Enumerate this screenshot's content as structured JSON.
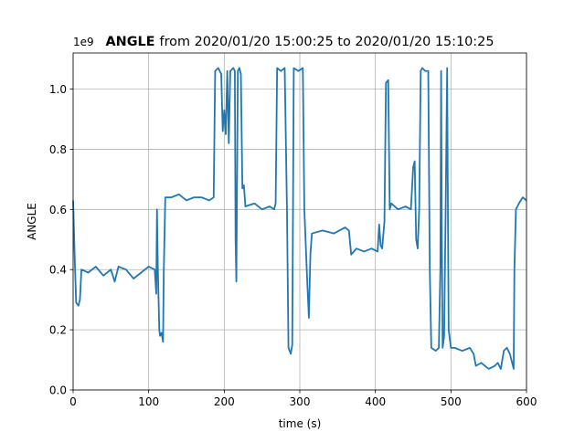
{
  "chart_data": {
    "type": "line",
    "title_variable": "ANGLE",
    "title": "from 2020/01/20 15:00:25 to 2020/01/20 15:10:25",
    "x_label": "time (s)",
    "y_label": "ANGLE",
    "y_offset": "1e9",
    "xlim": [
      0,
      600
    ],
    "ylim": [
      0,
      1.12
    ],
    "xticks": [
      0,
      100,
      200,
      300,
      400,
      500,
      600
    ],
    "yticks": [
      {
        "value": 0,
        "label": "0.0"
      },
      0.2,
      0.4,
      0.6,
      0.8,
      {
        "value": 1.0,
        "label": "1.0"
      }
    ],
    "grid": true,
    "series": [
      {
        "name": "ANGLE",
        "color": "#1f77b4",
        "x": [
          0,
          2,
          4,
          7,
          9,
          11,
          20,
          30,
          40,
          50,
          55,
          60,
          70,
          80,
          90,
          100,
          108,
          110,
          111,
          112,
          114,
          115,
          117,
          119,
          120,
          122,
          130,
          140,
          150,
          160,
          170,
          180,
          186,
          188,
          192,
          196,
          198,
          200,
          202,
          204,
          206,
          208,
          212,
          214,
          215,
          216,
          218,
          220,
          222,
          224,
          226,
          228,
          240,
          250,
          260,
          266,
          268,
          270,
          275,
          280,
          283,
          285,
          288,
          290,
          292,
          298,
          304,
          306,
          310,
          312,
          314,
          316,
          330,
          345,
          360,
          365,
          368,
          375,
          385,
          395,
          403,
          405,
          407,
          409,
          412,
          414,
          417,
          419,
          421,
          430,
          440,
          447,
          450,
          452,
          454,
          456,
          458,
          460,
          462,
          466,
          470,
          472,
          474,
          480,
          484,
          486,
          487,
          488,
          489,
          491,
          493,
          495,
          496,
          497,
          500,
          505,
          515,
          525,
          530,
          533,
          540,
          550,
          558,
          562,
          566,
          570,
          574,
          578,
          583,
          584,
          586,
          590,
          595,
          600
        ],
        "values": [
          0.63,
          0.45,
          0.29,
          0.28,
          0.3,
          0.4,
          0.39,
          0.41,
          0.38,
          0.4,
          0.36,
          0.41,
          0.4,
          0.37,
          0.39,
          0.41,
          0.4,
          0.32,
          0.6,
          0.42,
          0.2,
          0.18,
          0.19,
          0.16,
          0.4,
          0.64,
          0.64,
          0.65,
          0.63,
          0.64,
          0.64,
          0.63,
          0.64,
          1.06,
          1.07,
          1.05,
          0.86,
          0.93,
          0.85,
          1.06,
          0.82,
          1.06,
          1.07,
          1.06,
          0.5,
          0.36,
          1.06,
          1.07,
          1.05,
          0.67,
          0.68,
          0.61,
          0.62,
          0.6,
          0.61,
          0.6,
          0.62,
          1.07,
          1.06,
          1.07,
          0.6,
          0.14,
          0.12,
          0.15,
          1.07,
          1.06,
          1.07,
          0.6,
          0.35,
          0.24,
          0.45,
          0.52,
          0.53,
          0.52,
          0.54,
          0.53,
          0.45,
          0.47,
          0.46,
          0.47,
          0.46,
          0.55,
          0.48,
          0.47,
          0.56,
          1.02,
          1.03,
          0.6,
          0.62,
          0.6,
          0.61,
          0.6,
          0.74,
          0.76,
          0.5,
          0.47,
          0.6,
          1.06,
          1.07,
          1.06,
          1.06,
          0.4,
          0.14,
          0.13,
          0.14,
          0.4,
          1.06,
          0.5,
          0.14,
          0.18,
          0.6,
          1.07,
          0.6,
          0.2,
          0.14,
          0.14,
          0.13,
          0.14,
          0.12,
          0.08,
          0.09,
          0.07,
          0.08,
          0.09,
          0.07,
          0.13,
          0.14,
          0.12,
          0.07,
          0.4,
          0.6,
          0.62,
          0.64,
          0.63
        ]
      }
    ]
  }
}
